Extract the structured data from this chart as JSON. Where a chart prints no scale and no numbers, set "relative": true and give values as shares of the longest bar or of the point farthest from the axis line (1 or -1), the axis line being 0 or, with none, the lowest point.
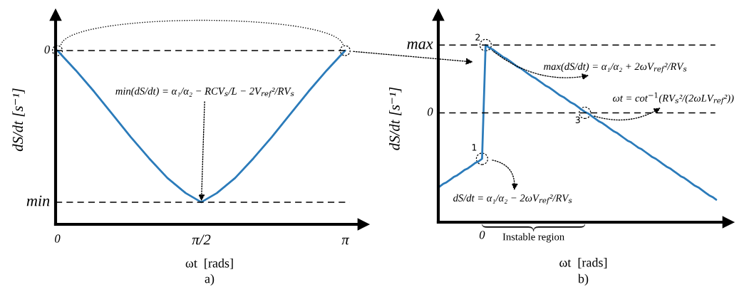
{
  "chart_data": [
    {
      "type": "line",
      "title": "a)",
      "xlabel": "ωt  [rads]",
      "ylabel": "dS/dt [s⁻¹]",
      "relative": true,
      "x": [
        0,
        0.2,
        0.4,
        0.6,
        0.8,
        1.0,
        1.2,
        1.4,
        1.57,
        1.74,
        1.94,
        2.14,
        2.34,
        2.54,
        2.74,
        2.94,
        3.14
      ],
      "series": [
        {
          "color": "#2b7bba",
          "values": [
            0,
            -0.13,
            -0.27,
            -0.42,
            -0.57,
            -0.71,
            -0.84,
            -0.94,
            -1,
            -0.94,
            -0.84,
            -0.71,
            -0.57,
            -0.42,
            -0.27,
            -0.13,
            0
          ]
        }
      ],
      "xlim": [
        -0.02,
        3.34
      ],
      "xticks": [
        0,
        {
          "value": 1.5708,
          "label": "π/2"
        },
        {
          "value": 3.1416,
          "label": "π"
        }
      ],
      "ref_lines": [
        {
          "axis": "y",
          "value": 0,
          "label": "0",
          "line_style": "dashed",
          "color": "#000000"
        },
        {
          "axis": "y",
          "value": -1,
          "label": "min",
          "line_style": "dashed",
          "color": "#000000"
        }
      ],
      "annotations": [
        {
          "text": "min(dS/dt) = α₁/α₂ − RCV$_{s}$/L − 2V$_{ref}$²/RV$_{s}$",
          "x": 1.5708,
          "y": -1
        }
      ]
    },
    {
      "type": "line",
      "title": "b)",
      "xlabel": "ωt  [rads]",
      "ylabel": "dS/dt [s⁻¹]",
      "relative": true,
      "categories": [
        null,
        null,
        null,
        null,
        null,
        null,
        null,
        null,
        null,
        null,
        null,
        null,
        null,
        null,
        null,
        null,
        null,
        null,
        null,
        null,
        null,
        null,
        null,
        null,
        null,
        null,
        null,
        null,
        null,
        null,
        null,
        null,
        null,
        null,
        null,
        null,
        null,
        null,
        null,
        null,
        null,
        null,
        null,
        null,
        null,
        null,
        null,
        null,
        null,
        null,
        null,
        null,
        null,
        null,
        null,
        null,
        null,
        null,
        null,
        null,
        null,
        null,
        null,
        null,
        null,
        null,
        null,
        null,
        null,
        null,
        null,
        null,
        null,
        null,
        null,
        null,
        null,
        null,
        null
      ],
      "series": [
        {
          "color": "#2b7bba",
          "values": [
            -0.85,
            -0.82,
            -0.8,
            -0.77,
            -0.74,
            -0.72,
            -0.69,
            -0.66,
            -0.64,
            -0.61,
            -0.58,
            -0.56,
            -0.53,
            0.78,
            0.75,
            0.73,
            0.7,
            0.67,
            0.64,
            0.62,
            0.59,
            0.56,
            0.53,
            0.51,
            0.48,
            0.45,
            0.42,
            0.4,
            0.37,
            0.34,
            0.31,
            0.29,
            0.26,
            0.23,
            0.2,
            0.18,
            0.15,
            0.12,
            0.1,
            0.07,
            0.04,
            0.01,
            -0.01,
            -0.04,
            -0.07,
            -0.1,
            -0.12,
            -0.15,
            -0.18,
            -0.21,
            -0.23,
            -0.26,
            -0.29,
            -0.32,
            -0.34,
            -0.37,
            -0.4,
            -0.42,
            -0.45,
            -0.48,
            -0.51,
            -0.53,
            -0.56,
            -0.59,
            -0.62,
            -0.64,
            -0.67,
            -0.7,
            -0.73,
            -0.75,
            -0.78,
            -0.81,
            -0.84,
            -0.86,
            -0.89,
            -0.92,
            -0.95,
            -0.97,
            -1
          ]
        }
      ],
      "ref_lines": [
        {
          "axis": "y",
          "value": 0.78,
          "label": "max",
          "line_style": "dashed",
          "color": "#000000"
        },
        {
          "axis": "y",
          "value": 0,
          "label": "0",
          "line_style": "dashed",
          "color": "#000000"
        }
      ],
      "annotations": [
        {
          "text": "1",
          "y": -0.53
        },
        {
          "text": "2",
          "y": 0.78
        },
        {
          "text": "3",
          "y": 0
        },
        "dS/dt = α₁/α₂ − 2ωV$_{ref}$²/RV$_{s}$",
        {
          "text": "max(dS/dt) = α₁/α₂ + 2ωV$_{ref}$²/RV$_{s}$",
          "y": 0.78
        },
        {
          "text": "ωt = cot$^{−1}$(RV$_{s}$²/(2ωLV$_{ref}$²))",
          "y": 0
        },
        "Instable region",
        "0"
      ]
    }
  ]
}
